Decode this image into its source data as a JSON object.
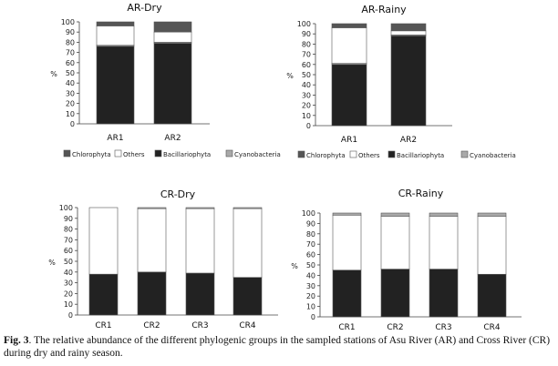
{
  "colors": {
    "Chlorophyta": "#555555",
    "Others": "#ffffff",
    "Bacillariophyta": "#222222",
    "Cyanobacteria": "#a9a9a9",
    "axis": "#444444"
  },
  "chart_data": [
    {
      "id": "ar-dry",
      "type": "bar",
      "stacked": true,
      "title": "AR-Dry",
      "ylabel": "%",
      "ylim": [
        0,
        100
      ],
      "yticks": [
        0,
        10,
        20,
        30,
        40,
        50,
        60,
        70,
        80,
        90,
        100
      ],
      "categories": [
        "AR1",
        "AR2"
      ],
      "series": [
        {
          "name": "Bacillariophyta",
          "values": [
            76,
            79
          ]
        },
        {
          "name": "Cyanobacteria",
          "values": [
            1,
            1
          ]
        },
        {
          "name": "Others",
          "values": [
            19,
            10
          ]
        },
        {
          "name": "Chlorophyta",
          "values": [
            4,
            10
          ]
        }
      ],
      "legend": [
        "Chlorophyta",
        "Others",
        "Bacillariophyta",
        "Cyanobacteria"
      ]
    },
    {
      "id": "ar-rainy",
      "type": "bar",
      "stacked": true,
      "title": "AR-Rainy",
      "ylabel": "%",
      "ylim": [
        0,
        100
      ],
      "yticks": [
        0,
        10,
        20,
        30,
        40,
        50,
        60,
        70,
        80,
        90,
        100
      ],
      "categories": [
        "AR1",
        "AR2"
      ],
      "series": [
        {
          "name": "Bacillariophyta",
          "values": [
            60,
            88
          ]
        },
        {
          "name": "Cyanobacteria",
          "values": [
            1,
            1
          ]
        },
        {
          "name": "Others",
          "values": [
            35,
            4
          ]
        },
        {
          "name": "Chlorophyta",
          "values": [
            4,
            7
          ]
        }
      ],
      "legend": [
        "Chlorophyta",
        "Others",
        "Bacillariophyta",
        "Cyanobacteria"
      ]
    },
    {
      "id": "cr-dry",
      "type": "bar",
      "stacked": true,
      "title": "CR-Dry",
      "ylabel": "%",
      "ylim": [
        0,
        100
      ],
      "yticks": [
        0,
        10,
        20,
        30,
        40,
        50,
        60,
        70,
        80,
        90,
        100
      ],
      "categories": [
        "CR1",
        "CR2",
        "CR3",
        "CR4"
      ],
      "series": [
        {
          "name": "Bacillariophyta",
          "values": [
            38,
            40,
            39,
            35
          ]
        },
        {
          "name": "Others",
          "values": [
            62,
            59,
            60,
            64
          ]
        },
        {
          "name": "Cyanobacteria",
          "values": [
            0,
            1,
            1,
            1
          ]
        }
      ]
    },
    {
      "id": "cr-rainy",
      "type": "bar",
      "stacked": true,
      "title": "CR-Rainy",
      "ylabel": "%",
      "ylim": [
        0,
        100
      ],
      "yticks": [
        0,
        10,
        20,
        30,
        40,
        50,
        60,
        70,
        80,
        90,
        100
      ],
      "categories": [
        "CR1",
        "CR2",
        "CR3",
        "CR4"
      ],
      "series": [
        {
          "name": "Bacillariophyta",
          "values": [
            45,
            46,
            46,
            41
          ]
        },
        {
          "name": "Others",
          "values": [
            53,
            51,
            51,
            56
          ]
        },
        {
          "name": "Cyanobacteria",
          "values": [
            2,
            3,
            3,
            3
          ]
        }
      ]
    }
  ],
  "caption": {
    "label": "Fig. 3",
    "text": ". The relative abundance of the different phylogenic groups in the sampled stations of Asu River (AR) and Cross River (CR) during dry and rainy season."
  }
}
